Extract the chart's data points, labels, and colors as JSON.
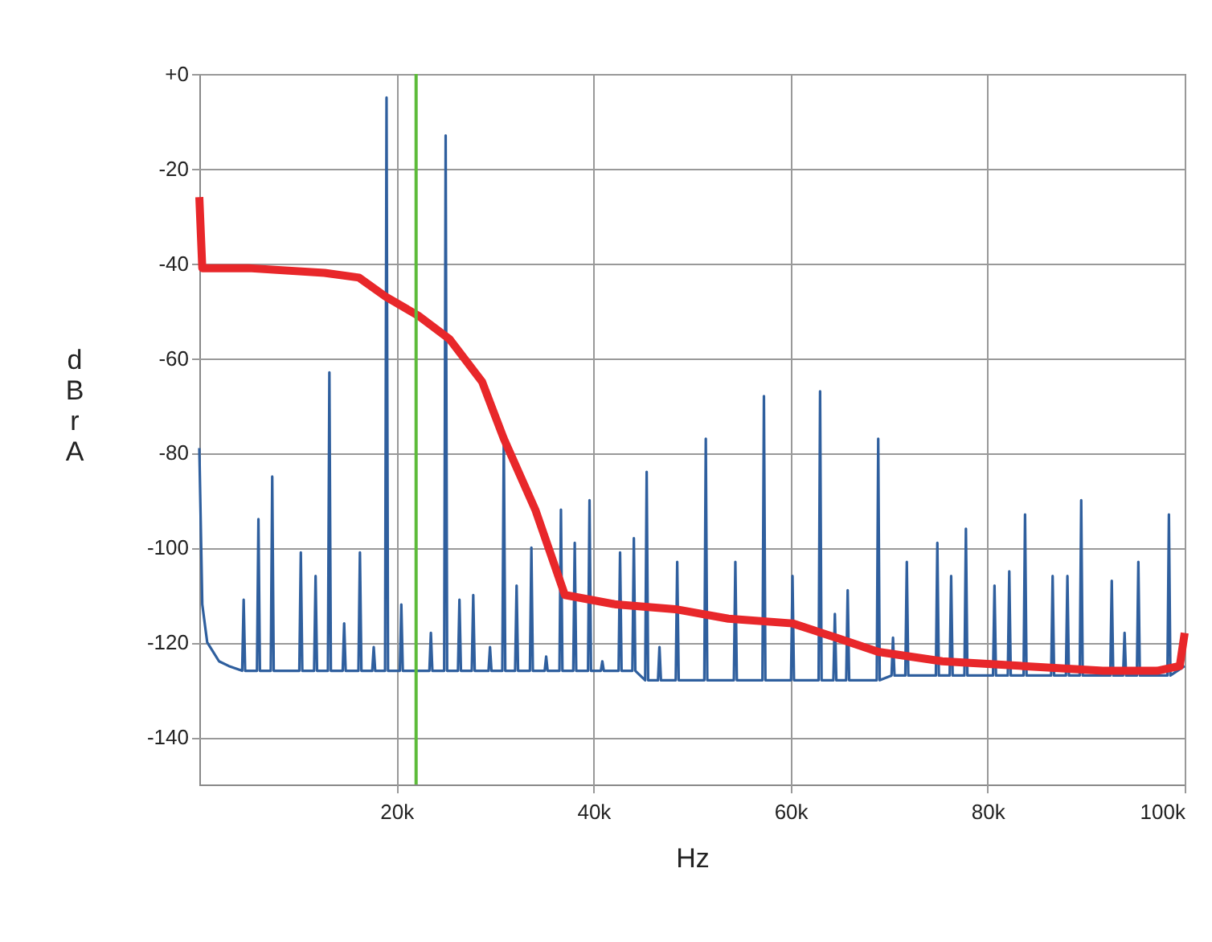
{
  "chart_data": {
    "type": "line",
    "xlabel": "Hz",
    "ylabel": "dBr A",
    "xlim": [
      0,
      100000
    ],
    "ylim": [
      -150,
      0
    ],
    "xticks": [
      {
        "value": 20000,
        "label": "20k"
      },
      {
        "value": 40000,
        "label": "40k"
      },
      {
        "value": 60000,
        "label": "60k"
      },
      {
        "value": 80000,
        "label": "80k"
      },
      {
        "value": 100000,
        "label": "100k"
      }
    ],
    "yticks": [
      -140,
      -120,
      -100,
      -80,
      -60,
      -40,
      -20,
      {
        "value": 0,
        "label": "+0"
      }
    ],
    "grid": true,
    "line_style": "solid",
    "marker": "none",
    "ref_lines": [
      {
        "axis": "x",
        "value": 22000,
        "label": null,
        "color": "#5dbb3a"
      }
    ],
    "series": [
      {
        "color": "#2f5f9e",
        "x": [
          0,
          300,
          800,
          2000,
          3000,
          4350,
          4500,
          4650,
          5850,
          6000,
          6150,
          7250,
          7400,
          7550,
          10150,
          10300,
          10450,
          11650,
          11800,
          11950,
          13050,
          13200,
          13350,
          14550,
          14700,
          14850,
          16150,
          16300,
          16450,
          17550,
          17700,
          17850,
          18850,
          19000,
          19150,
          20350,
          20500,
          20650,
          23350,
          23500,
          23650,
          24850,
          25000,
          25150,
          26250,
          26400,
          26550,
          27650,
          27800,
          27950,
          29350,
          29500,
          29650,
          30750,
          30900,
          31050,
          32050,
          32200,
          32350,
          33550,
          33700,
          33850,
          35050,
          35200,
          35350,
          36550,
          36700,
          36850,
          37950,
          38100,
          38250,
          39450,
          39600,
          39750,
          40750,
          40900,
          41050,
          42550,
          42700,
          42850,
          43950,
          44100,
          44250,
          45250,
          45400,
          45550,
          46550,
          46700,
          46850,
          48350,
          48500,
          48650,
          51250,
          51400,
          51550,
          54250,
          54400,
          54550,
          57150,
          57300,
          57450,
          60050,
          60200,
          60350,
          62850,
          63000,
          63150,
          64350,
          64500,
          64650,
          65650,
          65800,
          65950,
          68750,
          68900,
          69050,
          70250,
          70400,
          70550,
          71650,
          71800,
          71950,
          74750,
          74900,
          75050,
          76150,
          76300,
          76450,
          77650,
          77800,
          77950,
          80550,
          80700,
          80850,
          82050,
          82200,
          82350,
          83650,
          83800,
          83950,
          86450,
          86600,
          86750,
          87950,
          88100,
          88250,
          89350,
          89500,
          89650,
          92450,
          92600,
          92750,
          93750,
          93900,
          94050,
          95150,
          95300,
          95450,
          98250,
          98400,
          98550,
          100000
        ],
        "values": [
          -79,
          -112,
          -120,
          -124,
          -125,
          -126,
          -111,
          -126,
          -126,
          -94,
          -126,
          -126,
          -85,
          -126,
          -126,
          -101,
          -126,
          -126,
          -106,
          -126,
          -126,
          -63,
          -126,
          -126,
          -116,
          -126,
          -126,
          -101,
          -126,
          -126,
          -121,
          -126,
          -126,
          -5,
          -126,
          -126,
          -112,
          -126,
          -126,
          -118,
          -126,
          -126,
          -13,
          -126,
          -126,
          -111,
          -126,
          -126,
          -110,
          -126,
          -126,
          -121,
          -126,
          -126,
          -77,
          -126,
          -126,
          -108,
          -126,
          -126,
          -100,
          -126,
          -126,
          -123,
          -126,
          -126,
          -92,
          -126,
          -126,
          -99,
          -126,
          -126,
          -90,
          -126,
          -126,
          -124,
          -126,
          -126,
          -101,
          -126,
          -126,
          -98,
          -126,
          -128,
          -84,
          -128,
          -128,
          -121,
          -128,
          -128,
          -103,
          -128,
          -128,
          -77,
          -128,
          -128,
          -103,
          -128,
          -128,
          -68,
          -128,
          -128,
          -106,
          -128,
          -128,
          -67,
          -128,
          -128,
          -114,
          -128,
          -128,
          -109,
          -128,
          -128,
          -77,
          -128,
          -127,
          -119,
          -127,
          -127,
          -103,
          -127,
          -127,
          -99,
          -127,
          -127,
          -106,
          -127,
          -127,
          -96,
          -127,
          -127,
          -108,
          -127,
          -127,
          -105,
          -127,
          -127,
          -93,
          -127,
          -127,
          -106,
          -127,
          -127,
          -106,
          -127,
          -127,
          -90,
          -127,
          -127,
          -107,
          -127,
          -127,
          -118,
          -127,
          -127,
          -103,
          -127,
          -127,
          -93,
          -127,
          -125
        ]
      },
      {
        "color": "#e8272a",
        "x": [
          0,
          300,
          5000,
          12700,
          16200,
          18900,
          22200,
          25400,
          28700,
          30900,
          34100,
          37100,
          42300,
          48300,
          53700,
          60200,
          64600,
          68900,
          75400,
          83600,
          91700,
          97200,
          99500,
          100000
        ],
        "values": [
          -26,
          -41,
          -41,
          -42,
          -43,
          -47,
          -51,
          -56,
          -65,
          -77,
          -92,
          -110,
          -112,
          -113,
          -115,
          -116,
          -119,
          -122,
          -124,
          -125,
          -126,
          -126,
          -125,
          -118
        ]
      }
    ]
  }
}
